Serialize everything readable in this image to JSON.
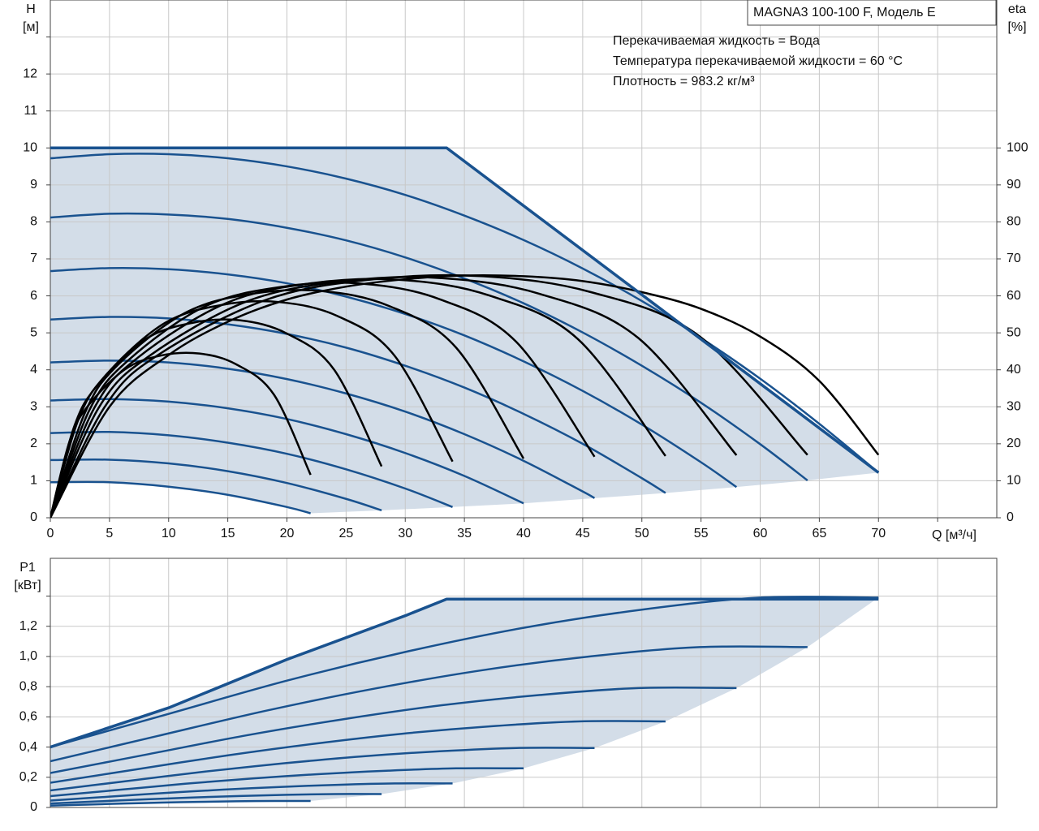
{
  "chart_data": [
    {
      "type": "line",
      "title": "MAGNA3 100-100 F, Модель E",
      "annotations": [
        "Перекачиваемая жидкость = Вода",
        "Температура перекачиваемой жидкости = 60 °C",
        "Плотность = 983.2 кг/м³"
      ],
      "ylabel": "H",
      "yunit": "[м]",
      "y2label": "eta",
      "y2unit": "[%]",
      "xlabel": "Q [м³/ч]",
      "xlim": [
        0,
        80
      ],
      "xticks": [
        0,
        5,
        10,
        15,
        20,
        25,
        30,
        35,
        40,
        45,
        50,
        55,
        60,
        65,
        70,
        {
          "value": 75,
          "label": null
        }
      ],
      "ylim": [
        0,
        14
      ],
      "yticks": [
        0,
        1,
        2,
        3,
        4,
        5,
        6,
        7,
        8,
        9,
        10,
        11,
        12,
        {
          "value": 13,
          "label": null
        }
      ],
      "y2lim": [
        0,
        140
      ],
      "y2ticks": [
        0,
        10,
        20,
        30,
        40,
        50,
        60,
        70,
        80,
        90,
        100
      ],
      "grid": true,
      "area_color": "#d3dde8",
      "boundary": {
        "color": "#19528f",
        "x": [
          0,
          33.5,
          70
        ],
        "values": [
          10,
          10,
          1.22
        ]
      },
      "series": [
        {
          "color": "#19528f",
          "x": [
            0,
            5,
            10,
            15,
            20,
            22
          ],
          "values": [
            0.96,
            0.96,
            0.84,
            0.62,
            0.29,
            0.12
          ]
        },
        {
          "color": "#19528f",
          "x": [
            0,
            5,
            10,
            15,
            20,
            25,
            28
          ],
          "values": [
            1.56,
            1.57,
            1.47,
            1.26,
            0.94,
            0.51,
            0.2
          ]
        },
        {
          "color": "#19528f",
          "x": [
            0,
            5,
            10,
            15,
            20,
            25,
            30,
            34
          ],
          "values": [
            2.29,
            2.32,
            2.23,
            2.03,
            1.73,
            1.31,
            0.79,
            0.29
          ]
        },
        {
          "color": "#19528f",
          "x": [
            0,
            5,
            10,
            15,
            20,
            25,
            30,
            35,
            40
          ],
          "values": [
            3.17,
            3.21,
            3.14,
            2.96,
            2.67,
            2.26,
            1.75,
            1.13,
            0.39
          ]
        },
        {
          "color": "#19528f",
          "x": [
            0,
            5,
            10,
            15,
            20,
            25,
            30,
            35,
            40,
            45,
            46
          ],
          "values": [
            4.2,
            4.25,
            4.2,
            4.03,
            3.75,
            3.36,
            2.87,
            2.26,
            1.54,
            0.71,
            0.53
          ]
        },
        {
          "color": "#19528f",
          "x": [
            0,
            5,
            10,
            15,
            20,
            25,
            30,
            35,
            40,
            45,
            50,
            52
          ],
          "values": [
            5.36,
            5.43,
            5.39,
            5.23,
            4.97,
            4.6,
            4.11,
            3.52,
            2.81,
            2.0,
            1.07,
            0.67
          ]
        },
        {
          "color": "#19528f",
          "x": [
            0,
            5,
            10,
            15,
            20,
            25,
            30,
            35,
            40,
            45,
            50,
            55,
            58
          ],
          "values": [
            6.67,
            6.75,
            6.72,
            6.58,
            6.34,
            5.98,
            5.51,
            4.93,
            4.23,
            3.43,
            2.52,
            1.5,
            0.83
          ]
        },
        {
          "color": "#19528f",
          "x": [
            0,
            5,
            10,
            15,
            20,
            25,
            30,
            35,
            40,
            45,
            50,
            55,
            60,
            64
          ],
          "values": [
            8.12,
            8.22,
            8.2,
            8.08,
            7.84,
            7.5,
            7.04,
            6.47,
            5.8,
            5.01,
            4.11,
            3.11,
            1.99,
            1.01
          ]
        },
        {
          "color": "#19528f",
          "x": [
            0,
            5,
            10,
            15,
            20,
            25,
            30,
            35,
            40,
            45,
            50,
            55,
            60,
            65,
            70
          ],
          "values": [
            9.72,
            9.83,
            9.83,
            9.72,
            9.5,
            9.17,
            8.73,
            8.17,
            7.51,
            6.74,
            5.86,
            4.86,
            3.76,
            2.54,
            1.22
          ]
        },
        {
          "color": "#000000",
          "axis": "y2",
          "x": [
            0,
            1.6,
            3.1,
            6.3,
            9.4,
            12.6,
            15.7,
            18.9,
            22
          ],
          "values": [
            0,
            20.4,
            29.9,
            40.1,
            43.9,
            44.4,
            41.5,
            33.3,
            11.6
          ]
        },
        {
          "color": "#000000",
          "axis": "y2",
          "x": [
            0,
            2,
            4,
            8,
            12,
            16,
            20,
            24,
            28
          ],
          "values": [
            0,
            24.5,
            35.9,
            48.2,
            52.7,
            53.4,
            49.8,
            40.0,
            13.9
          ]
        },
        {
          "color": "#000000",
          "axis": "y2",
          "x": [
            0,
            2.4,
            4.9,
            9.7,
            14.6,
            19.4,
            24.3,
            29.1,
            34
          ],
          "values": [
            0,
            26.8,
            39.3,
            52.7,
            57.6,
            58.3,
            54.5,
            43.8,
            15.2
          ]
        },
        {
          "color": "#000000",
          "axis": "y2",
          "x": [
            0,
            2.9,
            5.7,
            11.4,
            17.1,
            22.9,
            28.6,
            34.3,
            40
          ],
          "values": [
            0,
            28.2,
            41.3,
            55.4,
            60.6,
            61.3,
            57.3,
            46.0,
            16.0
          ]
        },
        {
          "color": "#000000",
          "axis": "y2",
          "x": [
            0,
            3.3,
            6.6,
            13.1,
            19.7,
            26.3,
            32.9,
            39.4,
            46
          ],
          "values": [
            0,
            29.1,
            42.6,
            57.2,
            62.5,
            63.3,
            59.1,
            47.5,
            16.5
          ]
        },
        {
          "color": "#000000",
          "axis": "y2",
          "x": [
            0,
            3.7,
            7.4,
            14.9,
            22.3,
            29.7,
            37.1,
            44.6,
            52
          ],
          "values": [
            0,
            29.6,
            43.3,
            58.1,
            63.5,
            64.3,
            60.1,
            48.3,
            16.7
          ]
        },
        {
          "color": "#000000",
          "axis": "y2",
          "x": [
            0,
            4.1,
            8.3,
            16.6,
            24.9,
            33.1,
            41.4,
            49.7,
            58
          ],
          "values": [
            0,
            29.8,
            43.6,
            58.5,
            64.0,
            64.8,
            60.5,
            48.6,
            16.9
          ]
        },
        {
          "color": "#000000",
          "axis": "y2",
          "x": [
            0,
            4.6,
            9.1,
            18.3,
            27.4,
            36.6,
            45.7,
            54.9,
            64
          ],
          "values": [
            0,
            30,
            44,
            59,
            64.5,
            65.3,
            61,
            49,
            17
          ]
        },
        {
          "color": "#000000",
          "axis": "y2",
          "x": [
            0,
            5,
            10,
            15,
            20,
            25,
            30,
            35,
            40,
            45,
            50,
            55,
            60,
            65,
            70
          ],
          "values": [
            0,
            30,
            44,
            53,
            59,
            62.5,
            64.5,
            65.5,
            65.3,
            64,
            61,
            56.5,
            49,
            37,
            17
          ]
        }
      ]
    },
    {
      "type": "line",
      "ylabel": "P1",
      "yunit": "[кВт]",
      "xlim": [
        0,
        80
      ],
      "xgrid": [
        5,
        10,
        15,
        20,
        25,
        30,
        35,
        40,
        45,
        50,
        55,
        60,
        65,
        70,
        75
      ],
      "ylim": [
        0,
        1.65
      ],
      "yticks": [
        0,
        {
          "value": 0.2,
          "label": "0,2"
        },
        {
          "value": 0.4,
          "label": "0,4"
        },
        {
          "value": 0.6,
          "label": "0,6"
        },
        {
          "value": 0.8,
          "label": "0,8"
        },
        {
          "value": 1.0,
          "label": "1,0"
        },
        {
          "value": 1.2,
          "label": "1,2"
        },
        {
          "value": 1.4,
          "label": null
        }
      ],
      "grid": true,
      "area_color": "#d3dde8",
      "boundary": {
        "color": "#19528f",
        "x": [
          0,
          10,
          20,
          30,
          33.5,
          70
        ],
        "values": [
          0.4,
          0.66,
          0.98,
          1.27,
          1.38,
          1.38
        ]
      },
      "series": [
        {
          "color": "#19528f",
          "x": [
            0,
            3.1,
            6.3,
            9.4,
            12.6,
            15.7,
            18.9,
            22
          ],
          "values": [
            0.012,
            0.019,
            0.026,
            0.032,
            0.037,
            0.041,
            0.043,
            0.043
          ]
        },
        {
          "color": "#19528f",
          "x": [
            0,
            4,
            8,
            12,
            16,
            20,
            24,
            28
          ],
          "values": [
            0.026,
            0.04,
            0.054,
            0.066,
            0.076,
            0.084,
            0.089,
            0.089
          ]
        },
        {
          "color": "#19528f",
          "x": [
            0,
            4.9,
            9.7,
            14.6,
            19.4,
            24.3,
            29.1,
            34
          ],
          "values": [
            0.046,
            0.071,
            0.096,
            0.118,
            0.136,
            0.15,
            0.159,
            0.159
          ]
        },
        {
          "color": "#19528f",
          "x": [
            0,
            5.7,
            11.4,
            17.1,
            22.9,
            28.6,
            34.3,
            40
          ],
          "values": [
            0.075,
            0.116,
            0.157,
            0.192,
            0.222,
            0.244,
            0.259,
            0.259
          ]
        },
        {
          "color": "#19528f",
          "x": [
            0,
            6.6,
            13.1,
            19.7,
            26.3,
            32.9,
            39.4,
            46
          ],
          "values": [
            0.113,
            0.176,
            0.238,
            0.292,
            0.338,
            0.372,
            0.394,
            0.394
          ]
        },
        {
          "color": "#19528f",
          "x": [
            0,
            7.4,
            14.9,
            22.3,
            29.7,
            37.1,
            44.6,
            52
          ],
          "values": [
            0.164,
            0.254,
            0.344,
            0.422,
            0.488,
            0.537,
            0.57,
            0.57
          ]
        },
        {
          "color": "#19528f",
          "x": [
            0,
            8.3,
            16.6,
            24.9,
            33.1,
            41.4,
            49.7,
            58
          ],
          "values": [
            0.228,
            0.353,
            0.478,
            0.586,
            0.677,
            0.745,
            0.791,
            0.791
          ]
        },
        {
          "color": "#19528f",
          "x": [
            0,
            9.1,
            18.3,
            27.4,
            36.6,
            45.7,
            54.9,
            64
          ],
          "values": [
            0.306,
            0.474,
            0.642,
            0.787,
            0.91,
            1.001,
            1.062,
            1.062
          ]
        },
        {
          "color": "#19528f",
          "x": [
            0,
            10,
            20,
            30,
            40,
            50,
            60,
            70
          ],
          "values": [
            0.4,
            0.62,
            0.84,
            1.03,
            1.19,
            1.31,
            1.39,
            1.39
          ]
        }
      ]
    }
  ]
}
